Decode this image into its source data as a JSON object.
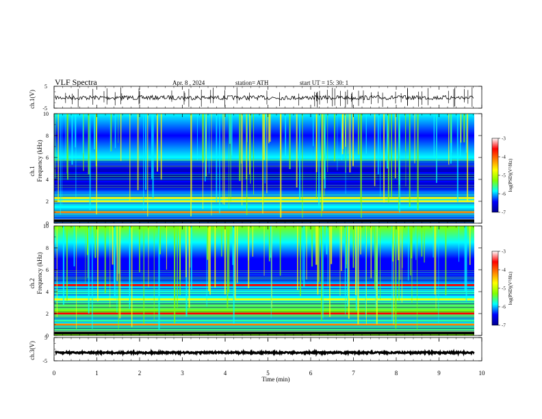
{
  "header": {
    "title": "VLF  Spectra",
    "date": "Apr. 8  , 2024",
    "station": "station= ATH",
    "start": "start  UT  =    15: 30: 1"
  },
  "chart_data": [
    {
      "type": "line",
      "panel": "ch1-waveform",
      "ylabel": "ch.1(V)",
      "yticks": [
        "5",
        "-5"
      ],
      "ylim": [
        -5,
        5
      ],
      "xlim": [
        0,
        10
      ],
      "level": -0.2,
      "noise_amplitude": 0.6,
      "spike_count": 55,
      "color": "#000000"
    },
    {
      "type": "heatmap",
      "panel": "ch1-spectrogram",
      "ylabel": "Frequency  (kHz)",
      "channel_label": "ch.1",
      "yticks": [
        "0",
        "2",
        "4",
        "6",
        "8",
        "10"
      ],
      "ylim": [
        0,
        10
      ],
      "xlim": [
        0,
        9.85
      ],
      "bands_khz": [
        {
          "f": 0.3,
          "level": 0.98
        },
        {
          "f": 1.0,
          "level": 0.7
        },
        {
          "f": 2.0,
          "level": 0.55
        },
        {
          "f": 2.3,
          "level": 0.55
        },
        {
          "f": 3.8,
          "level": 0.1
        },
        {
          "f": 4.6,
          "level": 0.08
        }
      ],
      "colorbar": {
        "label": "log(PSD)(V²/Hz)",
        "ticks": [
          "-3",
          "-4",
          "-5",
          "-6",
          "-7"
        ],
        "range": [
          -7,
          -3
        ]
      }
    },
    {
      "type": "heatmap",
      "panel": "ch2-spectrogram",
      "ylabel": "Frequency  (kHz)",
      "channel_label": "ch.2",
      "yticks": [
        "0",
        "2",
        "4",
        "6",
        "8",
        "10"
      ],
      "ylim": [
        0,
        10
      ],
      "xlim": [
        0,
        9.85
      ],
      "bands_khz": [
        {
          "f": 0.3,
          "level": 0.98
        },
        {
          "f": 1.0,
          "level": 0.65
        },
        {
          "f": 2.0,
          "level": 0.85
        },
        {
          "f": 3.3,
          "level": 0.6
        },
        {
          "f": 4.6,
          "level": 0.8
        }
      ],
      "colorbar": {
        "label": "log(PSD)(V²/Hz)",
        "ticks": [
          "-3",
          "-4",
          "-5",
          "-6",
          "-7"
        ],
        "range": [
          -7,
          -3
        ]
      }
    },
    {
      "type": "line",
      "panel": "ch3-waveform",
      "ylabel": "ch.3(V)",
      "yticks": [
        "5",
        "-5"
      ],
      "ylim": [
        -5,
        5
      ],
      "xlim": [
        0,
        9.85
      ],
      "level": -1.5,
      "noise_amplitude": 0.15,
      "color": "#000000"
    }
  ],
  "xaxis": {
    "label": "Time  (min)",
    "ticks": [
      "0",
      "1",
      "2",
      "3",
      "4",
      "5",
      "6",
      "7",
      "8",
      "9",
      "10"
    ]
  },
  "colors": {
    "jet": [
      "#00008f",
      "#0000ff",
      "#00ffff",
      "#80ff00",
      "#ffff00",
      "#ff8000",
      "#ff0000",
      "#ffffff"
    ]
  }
}
